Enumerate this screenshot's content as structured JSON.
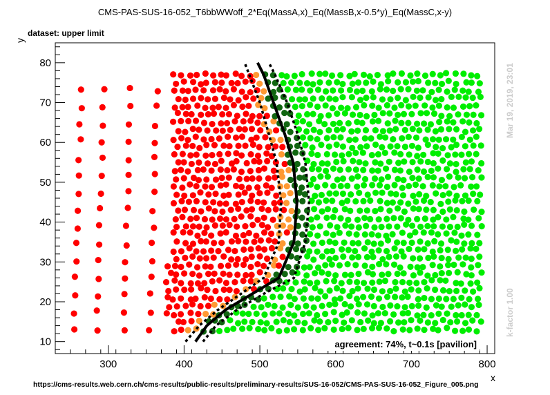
{
  "chart_data": {
    "type": "scatter",
    "title": "CMS-PAS-SUS-16-052_T6bbWWoff_2*Eq(MassA,x)_Eq(MassB,x-0.5*y)_Eq(MassC,x-y)",
    "subtitle": "dataset: upper limit",
    "xlabel": "x",
    "ylabel": "y",
    "xlim": [
      230,
      810
    ],
    "ylim": [
      7,
      85
    ],
    "x_ticks": [
      300,
      400,
      500,
      600,
      700,
      800
    ],
    "y_ticks": [
      10,
      20,
      30,
      40,
      50,
      60,
      70,
      80
    ],
    "grid": false,
    "agreement_label": "agreement: 74%, t~0.1s [pavilion]",
    "right_label_date": "Mar 19, 2019, 23:01",
    "right_label_kfactor": "k-factor 1.00",
    "footer_url": "https://cms-results.web.cern.ch/cms-results/public-results/preliminary-results/SUS-16-052/CMS-PAS-SUS-16-052_Figure_005.png",
    "colors": {
      "excluded_both": "#ff0000",
      "excluded_official_only": "#ff9933",
      "excluded_smodels_only": "#116611",
      "allowed_both": "#00ee00",
      "exclusion_line": "#000000"
    },
    "point_classes": [
      {
        "name": "excluded (official and SModelS)",
        "color_key": "excluded_both"
      },
      {
        "name": "excluded by official only",
        "color_key": "excluded_official_only"
      },
      {
        "name": "excluded by SModelS only",
        "color_key": "excluded_smodels_only"
      },
      {
        "name": "not excluded",
        "color_key": "allowed_both"
      }
    ],
    "series": [
      {
        "style": "solid",
        "points": [
          [
            415,
            10
          ],
          [
            430,
            14
          ],
          [
            455,
            18
          ],
          [
            490,
            22
          ],
          [
            525,
            26
          ],
          [
            545,
            35
          ],
          [
            549,
            45
          ],
          [
            544,
            55
          ],
          [
            533,
            62
          ],
          [
            518,
            70
          ],
          [
            505,
            77
          ],
          [
            497,
            80
          ]
        ]
      },
      {
        "style": "dotted",
        "points": [
          [
            402,
            10
          ],
          [
            420,
            14
          ],
          [
            445,
            18
          ],
          [
            475,
            22
          ],
          [
            505,
            26
          ],
          [
            525,
            35
          ],
          [
            528,
            45
          ],
          [
            522,
            55
          ],
          [
            512,
            62
          ],
          [
            500,
            70
          ],
          [
            488,
            76
          ],
          [
            480,
            80
          ]
        ]
      },
      {
        "style": "dotted",
        "points": [
          [
            425,
            10
          ],
          [
            442,
            14
          ],
          [
            470,
            18
          ],
          [
            505,
            22
          ],
          [
            545,
            26
          ],
          [
            560,
            35
          ],
          [
            565,
            45
          ],
          [
            560,
            55
          ],
          [
            550,
            62
          ],
          [
            536,
            70
          ],
          [
            520,
            77
          ],
          [
            512,
            80
          ]
        ]
      }
    ],
    "point_grid": {
      "y_rows_min": 13,
      "y_rows_max": 77,
      "y_step": 2,
      "left_columns_x": [
        260,
        290,
        325,
        360
      ],
      "dense_x_min": 385,
      "dense_x_max": 790,
      "dense_x_step": 10,
      "orange_band_width": 24,
      "green_dark_band_width": 28
    }
  }
}
